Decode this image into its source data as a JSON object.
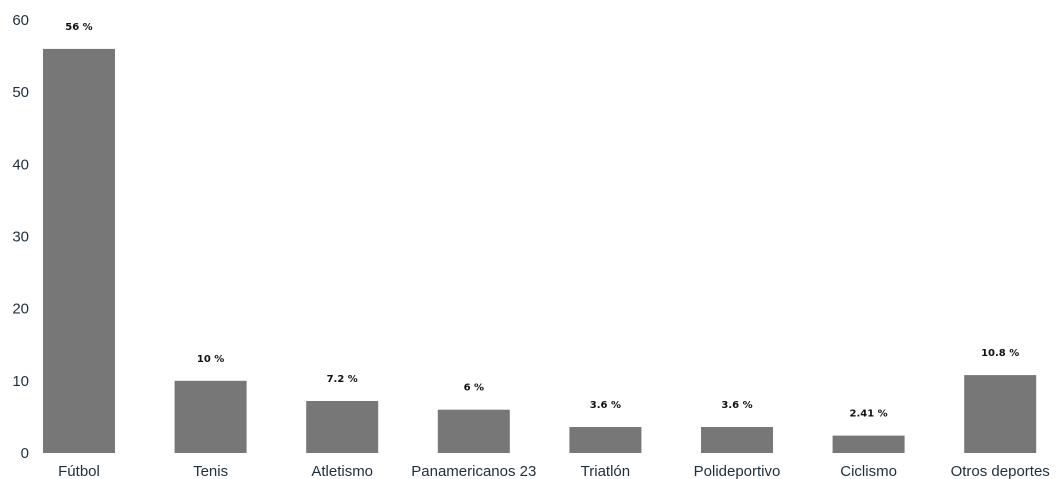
{
  "chart_data": {
    "type": "bar",
    "categories": [
      "Fútbol",
      "Tenis",
      "Atletismo",
      "Panamericanos 23",
      "Triatlón",
      "Polideportivo",
      "Ciclismo",
      "Otros deportes"
    ],
    "values": [
      56,
      10,
      7.2,
      6,
      3.6,
      3.6,
      2.41,
      10.8
    ],
    "data_labels": [
      "56 %",
      "10 %",
      "7.2 %",
      "6 %",
      "3.6 %",
      "3.6 %",
      "2.41 %",
      "10.8 %"
    ],
    "yticks": [
      0,
      10,
      20,
      30,
      40,
      50,
      60
    ],
    "ylim": [
      0,
      60
    ],
    "title": "",
    "xlabel": "",
    "ylabel": "",
    "grid": false,
    "legend": "none",
    "colors": {
      "bar": "#777777",
      "axis_text": "#1f2f3d",
      "data_label": "#111111"
    }
  }
}
